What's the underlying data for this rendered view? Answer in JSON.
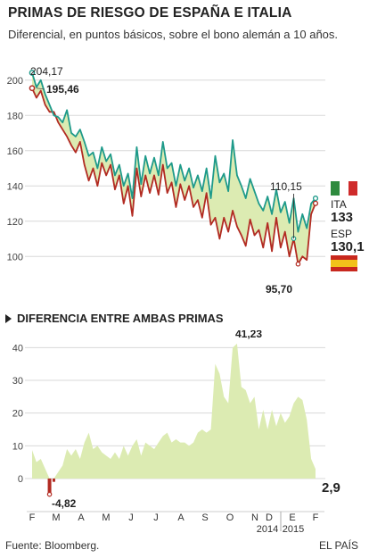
{
  "header": {
    "title": "PRIMAS DE RIESGO DE ESPAÑA E ITALIA",
    "subtitle": "Diferencial, en puntos básicos, sobre el bono alemán a 10 años."
  },
  "section2_title": "DIFERENCIA ENTRE AMBAS PRIMAS",
  "footer": {
    "source": "Fuente: Bloomberg.",
    "brand": "EL PAÍS"
  },
  "colors": {
    "italy": "#1e9a8a",
    "spain": "#b22b22",
    "fill": "#dcebb2",
    "grid": "#d8d8d8"
  },
  "legend": {
    "italy_label": "ITA",
    "italy_value": "133",
    "spain_label": "ESP",
    "spain_value": "130,1"
  },
  "chart_data": [
    {
      "type": "line",
      "ylim": [
        90,
        210
      ],
      "yticks": [
        "100",
        "120",
        "140",
        "160",
        "180",
        "200"
      ],
      "x_ticks": [
        "F",
        "M",
        "A",
        "M",
        "J",
        "J",
        "A",
        "S",
        "O",
        "N",
        "D",
        "E",
        "F"
      ],
      "x_year_labels": [
        "2014",
        "2015"
      ],
      "series": [
        {
          "name": "ITA",
          "color": "#1e9a8a",
          "values": [
            204.17,
            196,
            200,
            192,
            186,
            180,
            179,
            176,
            183,
            170,
            168,
            172,
            165,
            157,
            159,
            150,
            162,
            154,
            158,
            146,
            152,
            140,
            147,
            133,
            162,
            141,
            157,
            147,
            156,
            146,
            165,
            150,
            153,
            140,
            152,
            143,
            150,
            139,
            146,
            137,
            150,
            133,
            157,
            142,
            147,
            137,
            166,
            146,
            140,
            133,
            144,
            137,
            130,
            126,
            134,
            124,
            138,
            125,
            131,
            119,
            133,
            114,
            124,
            116,
            130,
            133
          ]
        },
        {
          "name": "ESP",
          "color": "#b22b22",
          "values": [
            195.46,
            190,
            194,
            186,
            182,
            182,
            176,
            172,
            168,
            163,
            159,
            165,
            152,
            143,
            150,
            140,
            153,
            146,
            152,
            138,
            146,
            130,
            140,
            123,
            150,
            134,
            146,
            136,
            146,
            135,
            152,
            136,
            142,
            128,
            141,
            132,
            140,
            128,
            132,
            122,
            136,
            118,
            122,
            110,
            122,
            114,
            126,
            117,
            112,
            106,
            121,
            112,
            115,
            105,
            119,
            103,
            122,
            105,
            114,
            100,
            110.15,
            95.7,
            100,
            98,
            124,
            130.1
          ]
        }
      ],
      "annotations": [
        "204,17",
        "195,46",
        "110,15",
        "95,70"
      ]
    },
    {
      "type": "area",
      "ylim": [
        -6,
        42
      ],
      "yticks": [
        "0",
        "10",
        "20",
        "30",
        "40"
      ],
      "x_ticks": [
        "F",
        "M",
        "A",
        "M",
        "J",
        "J",
        "A",
        "S",
        "O",
        "N",
        "D",
        "E",
        "F"
      ],
      "x_year_labels": [
        "2014",
        "2015"
      ],
      "values": [
        8.7,
        5,
        6,
        3,
        -4.82,
        -1,
        2,
        4,
        9,
        7,
        9,
        6,
        11,
        14,
        9,
        10,
        8,
        7,
        6,
        8,
        6,
        10,
        7,
        10,
        12,
        7,
        11,
        10,
        9,
        11,
        13,
        14,
        11,
        12,
        11,
        11,
        10,
        11,
        14,
        15,
        14,
        15,
        35,
        32,
        25,
        23,
        40,
        41.23,
        28,
        27,
        23,
        25,
        15,
        21,
        15,
        21,
        16,
        20,
        17,
        19,
        23,
        25,
        24,
        18,
        6,
        2.9
      ],
      "annotations": [
        "41,23",
        "-4,82",
        "2,9"
      ]
    }
  ]
}
